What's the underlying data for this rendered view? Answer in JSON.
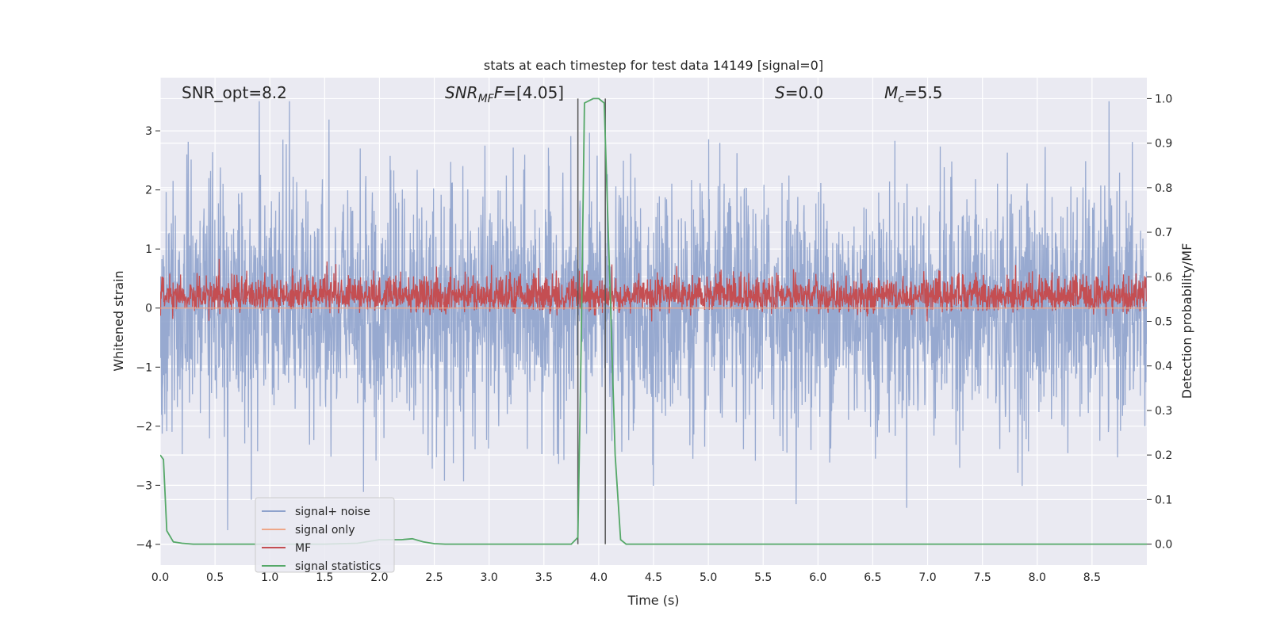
{
  "chart_data": {
    "type": "line",
    "title": "stats at each timestep for test data 14149 [signal=0]",
    "xlabel": "Time (s)",
    "ylabel": "Whitened strain",
    "y2label": "Detection probability/MF",
    "xlim": [
      0,
      9.0
    ],
    "ylim": [
      -4.35,
      3.9
    ],
    "y2lim": [
      -0.047,
      1.047
    ],
    "grid": true,
    "x_ticks": [
      "0.0",
      "0.5",
      "1.0",
      "1.5",
      "2.0",
      "2.5",
      "3.0",
      "3.5",
      "4.0",
      "4.5",
      "5.0",
      "5.5",
      "6.0",
      "6.5",
      "7.0",
      "7.5",
      "8.0",
      "8.5"
    ],
    "y_ticks": [
      "−4",
      "−3",
      "−2",
      "−1",
      "0",
      "1",
      "2",
      "3"
    ],
    "y2_ticks": [
      "0.0",
      "0.1",
      "0.2",
      "0.3",
      "0.4",
      "0.5",
      "0.6",
      "0.7",
      "0.8",
      "0.9",
      "1.0"
    ],
    "annotations": {
      "snr_opt": "SNR_opt=8.2",
      "snr_mf_base": "SNR",
      "snr_mf_sub": "MF",
      "snr_mf_base2": "F",
      "snr_mf_value": "=[4.05]",
      "s_sym": "S",
      "s_value": "=0.0",
      "mc_base": "M",
      "mc_sub": "c",
      "mc_value": "=5.5"
    },
    "legend": {
      "placement": "lower-left",
      "entries": [
        {
          "label": "signal+ noise",
          "color": "#8ea2cc"
        },
        {
          "label": "signal only",
          "color": "#eea789"
        },
        {
          "label": "MF",
          "color": "#c44e52"
        },
        {
          "label": "signal statistics",
          "color": "#55a868"
        }
      ]
    },
    "vlines": {
      "x": [
        3.81,
        4.06
      ],
      "color": "#555555"
    },
    "series": [
      {
        "name": "signal+ noise",
        "color": "#8ea2cc",
        "description_of_envelope": "dense whitened-noise trace, roughly within ±2 with spikes to about ±3.5",
        "y_range": [
          -4.0,
          3.5
        ]
      },
      {
        "name": "MF",
        "color": "#c44e52",
        "axis": "right",
        "y_range": [
          0.5,
          0.68
        ]
      },
      {
        "name": "signal statistics",
        "color": "#55a868",
        "axis": "right",
        "x": [
          0.0,
          0.03,
          0.06,
          0.12,
          0.2,
          0.3,
          0.5,
          1.0,
          1.5,
          1.8,
          2.0,
          2.1,
          2.2,
          2.3,
          2.4,
          2.5,
          2.6,
          3.0,
          3.5,
          3.75,
          3.81,
          3.84,
          3.87,
          3.95,
          4.0,
          4.05,
          4.1,
          4.15,
          4.2,
          4.25,
          4.5,
          5.0,
          6.0,
          7.0,
          8.0,
          9.0
        ],
        "y": [
          0.2,
          0.19,
          0.03,
          0.005,
          0.002,
          0.0,
          0.0,
          0.0,
          0.0,
          0.002,
          0.01,
          0.01,
          0.01,
          0.012,
          0.005,
          0.001,
          0.0,
          0.0,
          0.0,
          0.0,
          0.015,
          0.45,
          0.99,
          1.0,
          1.0,
          0.99,
          0.6,
          0.2,
          0.01,
          0.0,
          0.0,
          0.0,
          0.0,
          0.0,
          0.0,
          0.0
        ]
      }
    ]
  }
}
